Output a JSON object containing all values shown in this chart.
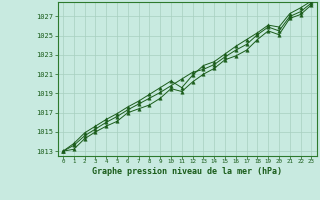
{
  "title": "Graphe pression niveau de la mer (hPa)",
  "bg_color": "#c8eae0",
  "plot_bg_color": "#c8eae0",
  "grid_color": "#a8cfc0",
  "line_color": "#1a5c1a",
  "marker_color": "#1a5c1a",
  "border_color": "#2d7a2d",
  "x_labels": [
    "0",
    "1",
    "2",
    "3",
    "4",
    "5",
    "6",
    "7",
    "8",
    "9",
    "10",
    "11",
    "12",
    "13",
    "14",
    "15",
    "16",
    "17",
    "18",
    "19",
    "20",
    "21",
    "22",
    "23"
  ],
  "ylim": [
    1012.5,
    1028.5
  ],
  "yticks": [
    1013,
    1015,
    1017,
    1019,
    1021,
    1023,
    1025,
    1027
  ],
  "series": [
    [
      1013.0,
      1013.2,
      1014.3,
      1015.0,
      1015.6,
      1016.1,
      1017.0,
      1017.4,
      1017.8,
      1018.5,
      1019.5,
      1019.2,
      1020.2,
      1021.0,
      1021.6,
      1022.5,
      1022.9,
      1023.5,
      1024.6,
      1025.5,
      1025.1,
      1026.8,
      1027.2,
      1028.2
    ],
    [
      1013.0,
      1013.6,
      1014.6,
      1015.3,
      1016.0,
      1016.6,
      1017.3,
      1017.9,
      1018.5,
      1019.1,
      1019.8,
      1020.5,
      1021.2,
      1021.5,
      1022.0,
      1022.8,
      1023.5,
      1024.1,
      1025.1,
      1025.9,
      1025.5,
      1027.0,
      1027.5,
      1028.4
    ],
    [
      1013.0,
      1013.8,
      1014.9,
      1015.6,
      1016.3,
      1016.9,
      1017.6,
      1018.2,
      1018.9,
      1019.6,
      1020.3,
      1019.6,
      1020.9,
      1021.9,
      1022.3,
      1023.1,
      1023.9,
      1024.6,
      1025.3,
      1026.1,
      1025.9,
      1027.3,
      1027.9,
      1028.6
    ]
  ]
}
